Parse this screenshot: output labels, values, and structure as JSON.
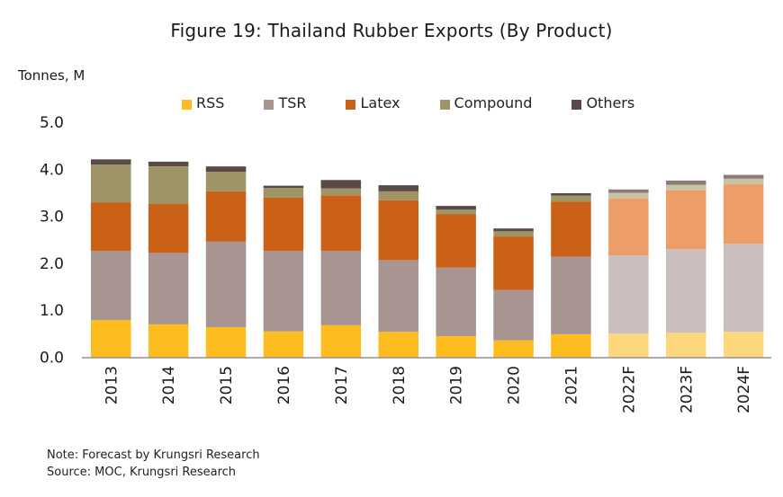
{
  "chart_data": {
    "type": "bar",
    "stacked": true,
    "title": "Figure 19: Thailand Rubber Exports (By Product)",
    "ylabel": "Tonnes, M",
    "xlabel": "",
    "ylim": [
      0,
      5
    ],
    "yticks": [
      "0.0",
      "1.0",
      "2.0",
      "3.0",
      "4.0",
      "5.0"
    ],
    "grid": false,
    "legend_position": "top-center",
    "categories": [
      "2013",
      "2014",
      "2015",
      "2016",
      "2017",
      "2018",
      "2019",
      "2020",
      "2021",
      "2022F",
      "2023F",
      "2024F"
    ],
    "forecast_categories": [
      "2022F",
      "2023F",
      "2024F"
    ],
    "series": [
      {
        "name": "RSS",
        "color": "#FDBD1E",
        "forecast_color": "#FDD77C",
        "values": [
          0.79,
          0.7,
          0.64,
          0.55,
          0.68,
          0.54,
          0.45,
          0.36,
          0.49,
          0.5,
          0.52,
          0.54
        ]
      },
      {
        "name": "TSR",
        "color": "#A89592",
        "forecast_color": "#CBBFBD",
        "values": [
          1.47,
          1.52,
          1.82,
          1.71,
          1.58,
          1.52,
          1.46,
          1.07,
          1.65,
          1.67,
          1.78,
          1.87
        ]
      },
      {
        "name": "Latex",
        "color": "#CB6017",
        "forecast_color": "#ED9E68",
        "values": [
          1.03,
          1.04,
          1.07,
          1.14,
          1.18,
          1.28,
          1.13,
          1.14,
          1.17,
          1.21,
          1.25,
          1.27
        ]
      },
      {
        "name": "Compound",
        "color": "#9E9465",
        "forecast_color": "#C9C3A6",
        "values": [
          0.81,
          0.8,
          0.42,
          0.2,
          0.15,
          0.19,
          0.1,
          0.11,
          0.13,
          0.12,
          0.12,
          0.12
        ]
      },
      {
        "name": "Others",
        "color": "#5A4A47",
        "forecast_color": "#8C7B78",
        "values": [
          0.11,
          0.1,
          0.11,
          0.05,
          0.18,
          0.13,
          0.08,
          0.06,
          0.05,
          0.07,
          0.09,
          0.08
        ]
      }
    ]
  },
  "notes": {
    "note": "Note: Forecast by Krungsri Research",
    "source": "Source: MOC, Krungsri Research"
  }
}
